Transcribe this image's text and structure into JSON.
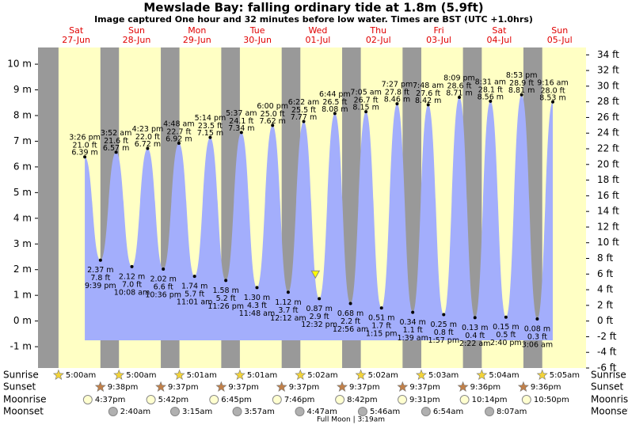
{
  "chart_data": {
    "type": "tide",
    "title": "Mewslade Bay: falling  ordinary tide at 1.8m (5.9ft)",
    "subtitle": "Image captured One hour and 32 minutes before low water. Times are BST (UTC +1.0hrs)",
    "weekdays": [
      "Sat",
      "Sun",
      "Mon",
      "Tue",
      "Wed",
      "Thu",
      "Fri",
      "Sat",
      "Sun"
    ],
    "dates": [
      "27-Jun",
      "28-Jun",
      "29-Jun",
      "30-Jun",
      "01-Jul",
      "02-Jul",
      "03-Jul",
      "04-Jul",
      "05-Jul"
    ],
    "x": [
      "3:26 pm",
      "9:39 pm",
      "3:52 am",
      "10:08 am",
      "4:23 pm",
      "10:36 pm",
      "4:48 am",
      "11:01 am",
      "5:14 pm",
      "11:26 pm",
      "5:37 am",
      "11:48 am",
      "6:00 pm",
      "12:12 am",
      "6:22 am",
      "12:32 pm",
      "6:44 pm",
      "12:56 am",
      "7:05 am",
      "1:15 pm",
      "7:27 pm",
      "1:39 am",
      "7:48 am",
      "1:57 pm",
      "8:09 pm",
      "2:22 am",
      "8:31 am",
      "2:40 pm",
      "8:53 pm",
      "3:06 am",
      "9:16 am"
    ],
    "values": [
      6.39,
      2.37,
      6.57,
      2.12,
      6.72,
      2.02,
      6.92,
      1.74,
      7.15,
      1.58,
      7.34,
      1.3,
      7.62,
      1.12,
      7.77,
      0.87,
      8.08,
      0.68,
      8.15,
      0.51,
      8.46,
      0.34,
      8.42,
      0.25,
      8.71,
      0.13,
      8.56,
      0.15,
      8.81,
      0.08,
      8.53
    ],
    "value_labels": [
      "6.39 m",
      "2.37 m",
      "6.57 m",
      "2.12 m",
      "6.72 m",
      "2.02 m",
      "6.92 m",
      "1.74 m",
      "7.15 m",
      "1.58 m",
      "7.34 m",
      "1.30 m",
      "7.62 m",
      "1.12 m",
      "7.77 m",
      "0.87 m",
      "8.08 m",
      "0.68 m",
      "8.15 m",
      "0.51 m",
      "8.46 m",
      "0.34 m",
      "8.42 m",
      "0.25 m",
      "8.71 m",
      "0.13 m",
      "8.56 m",
      "0.15 m",
      "8.81 m",
      "0.08 m",
      "8.53 m"
    ],
    "ft_labels": [
      "21.0 ft",
      "7.8 ft",
      "21.6 ft",
      "7.0 ft",
      "22.0 ft",
      "6.6 ft",
      "22.7 ft",
      "5.7 ft",
      "23.5 ft",
      "5.2 ft",
      "24.1 ft",
      "4.3 ft",
      "25.0 ft",
      "3.7 ft",
      "25.5 ft",
      "2.9 ft",
      "26.5 ft",
      "2.2 ft",
      "26.7 ft",
      "1.7 ft",
      "27.8 ft",
      "1.1 ft",
      "27.6 ft",
      "0.8 ft",
      "28.6 ft",
      "0.4 ft",
      "28.1 ft",
      "0.5 ft",
      "28.9 ft",
      "0.3 ft",
      "28.0 ft"
    ],
    "color": "#a3aefc",
    "current_level": 1.8,
    "ylim": [
      -1.83,
      10.65
    ],
    "yticks": [
      {
        "value": -1,
        "label": "-1 m"
      },
      {
        "value": 0,
        "label": "0 m"
      },
      {
        "value": 1,
        "label": "1 m"
      },
      {
        "value": 2,
        "label": "2 m"
      },
      {
        "value": 3,
        "label": "3 m"
      },
      {
        "value": 4,
        "label": "4 m"
      },
      {
        "value": 5,
        "label": "5 m"
      },
      {
        "value": 6,
        "label": "6 m"
      },
      {
        "value": 7,
        "label": "7 m"
      },
      {
        "value": 8,
        "label": "8 m"
      },
      {
        "value": 9,
        "label": "9 m"
      },
      {
        "value": 10,
        "label": "10 m"
      }
    ],
    "y2lim": [
      -6.0,
      34.94
    ],
    "y2ticks": [
      {
        "value": -6,
        "label": "-6 ft"
      },
      {
        "value": -4,
        "label": "-4 ft"
      },
      {
        "value": -2,
        "label": "-2 ft"
      },
      {
        "value": 0,
        "label": "0 ft"
      },
      {
        "value": 2,
        "label": "2 ft"
      },
      {
        "value": 4,
        "label": "4 ft"
      },
      {
        "value": 6,
        "label": "6 ft"
      },
      {
        "value": 8,
        "label": "8 ft"
      },
      {
        "value": 10,
        "label": "10 ft"
      },
      {
        "value": 12,
        "label": "12 ft"
      },
      {
        "value": 14,
        "label": "14 ft"
      },
      {
        "value": 16,
        "label": "16 ft"
      },
      {
        "value": 18,
        "label": "18 ft"
      },
      {
        "value": 20,
        "label": "20 ft"
      },
      {
        "value": 22,
        "label": "22 ft"
      },
      {
        "value": 24,
        "label": "24 ft"
      },
      {
        "value": 26,
        "label": "26 ft"
      },
      {
        "value": 28,
        "label": "28 ft"
      },
      {
        "value": 30,
        "label": "30 ft"
      },
      {
        "value": 32,
        "label": "32 ft"
      },
      {
        "value": 34,
        "label": "34 ft"
      }
    ],
    "row_labels": [
      "Sunrise",
      "Sunset",
      "Moonrise",
      "Moonset"
    ],
    "sunrise": [
      "5:00am",
      "5:00am",
      "5:01am",
      "5:01am",
      "5:02am",
      "5:02am",
      "5:03am",
      "5:04am",
      "5:05am"
    ],
    "sunset": [
      "9:38pm",
      "9:37pm",
      "9:37pm",
      "9:37pm",
      "9:37pm",
      "9:37pm",
      "9:36pm",
      "9:36pm"
    ],
    "moonrise": [
      "4:37pm",
      "5:42pm",
      "6:45pm",
      "7:46pm",
      "8:42pm",
      "9:31pm",
      "10:14pm",
      "10:50pm"
    ],
    "moonset": [
      "2:40am",
      "3:15am",
      "3:57am",
      "4:47am",
      "5:46am",
      "6:54am",
      "8:07am"
    ],
    "moon_phase": "Full Moon | 3:19am"
  }
}
